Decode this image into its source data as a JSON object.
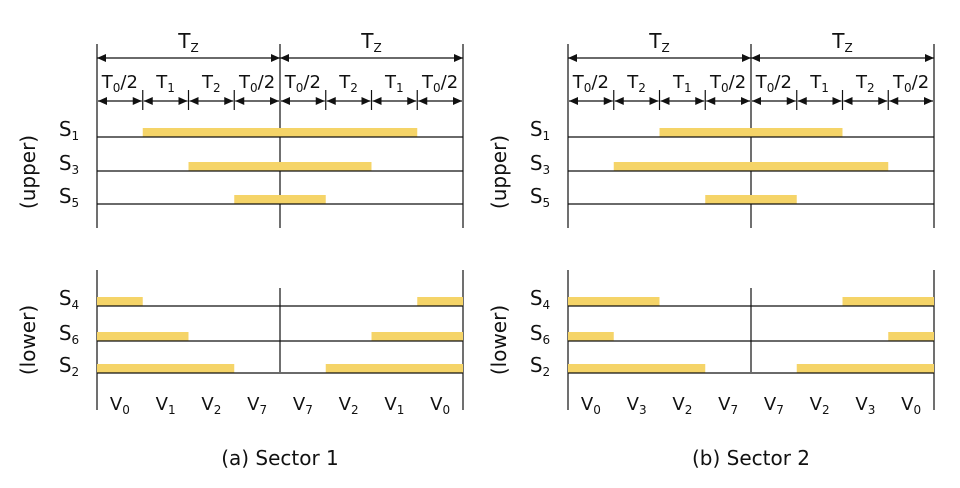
{
  "bar_color": "#F5D468",
  "line_color": "#111111",
  "group_labels": {
    "upper": "(upper)",
    "lower": "(lower)"
  },
  "panels": [
    {
      "id": "a",
      "caption": "(a) Sector 1",
      "tz_label": {
        "main": "T",
        "sub": "Z"
      },
      "segments": [
        {
          "main": "T",
          "sub": "0",
          "suffix": "/2"
        },
        {
          "main": "T",
          "sub": "1",
          "suffix": ""
        },
        {
          "main": "T",
          "sub": "2",
          "suffix": ""
        },
        {
          "main": "T",
          "sub": "0",
          "suffix": "/2"
        },
        {
          "main": "T",
          "sub": "0",
          "suffix": "/2"
        },
        {
          "main": "T",
          "sub": "2",
          "suffix": ""
        },
        {
          "main": "T",
          "sub": "1",
          "suffix": ""
        },
        {
          "main": "T",
          "sub": "0",
          "suffix": "/2"
        }
      ],
      "upper_switches": [
        {
          "main": "S",
          "sub": "1",
          "on": [
            1,
            7
          ]
        },
        {
          "main": "S",
          "sub": "3",
          "on": [
            2,
            6
          ]
        },
        {
          "main": "S",
          "sub": "5",
          "on": [
            3,
            5
          ]
        }
      ],
      "lower_switches": [
        {
          "main": "S",
          "sub": "4",
          "on": [
            [
              0,
              1
            ],
            [
              7,
              8
            ]
          ]
        },
        {
          "main": "S",
          "sub": "6",
          "on": [
            [
              0,
              2
            ],
            [
              6,
              8
            ]
          ]
        },
        {
          "main": "S",
          "sub": "2",
          "on": [
            [
              0,
              3
            ],
            [
              5,
              8
            ]
          ]
        }
      ],
      "vectors": [
        {
          "main": "V",
          "sub": "0"
        },
        {
          "main": "V",
          "sub": "1"
        },
        {
          "main": "V",
          "sub": "2"
        },
        {
          "main": "V",
          "sub": "7"
        },
        {
          "main": "V",
          "sub": "7"
        },
        {
          "main": "V",
          "sub": "2"
        },
        {
          "main": "V",
          "sub": "1"
        },
        {
          "main": "V",
          "sub": "0"
        }
      ]
    },
    {
      "id": "b",
      "caption": "(b) Sector 2",
      "tz_label": {
        "main": "T",
        "sub": "Z"
      },
      "segments": [
        {
          "main": "T",
          "sub": "0",
          "suffix": "/2"
        },
        {
          "main": "T",
          "sub": "2",
          "suffix": ""
        },
        {
          "main": "T",
          "sub": "1",
          "suffix": ""
        },
        {
          "main": "T",
          "sub": "0",
          "suffix": "/2"
        },
        {
          "main": "T",
          "sub": "0",
          "suffix": "/2"
        },
        {
          "main": "T",
          "sub": "1",
          "suffix": ""
        },
        {
          "main": "T",
          "sub": "2",
          "suffix": ""
        },
        {
          "main": "T",
          "sub": "0",
          "suffix": "/2"
        }
      ],
      "upper_switches": [
        {
          "main": "S",
          "sub": "1",
          "on": [
            2,
            6
          ]
        },
        {
          "main": "S",
          "sub": "3",
          "on": [
            1,
            7
          ]
        },
        {
          "main": "S",
          "sub": "5",
          "on": [
            3,
            5
          ]
        }
      ],
      "lower_switches": [
        {
          "main": "S",
          "sub": "4",
          "on": [
            [
              0,
              2
            ],
            [
              6,
              8
            ]
          ]
        },
        {
          "main": "S",
          "sub": "6",
          "on": [
            [
              0,
              1
            ],
            [
              7,
              8
            ]
          ]
        },
        {
          "main": "S",
          "sub": "2",
          "on": [
            [
              0,
              3
            ],
            [
              5,
              8
            ]
          ]
        }
      ],
      "vectors": [
        {
          "main": "V",
          "sub": "0"
        },
        {
          "main": "V",
          "sub": "3"
        },
        {
          "main": "V",
          "sub": "2"
        },
        {
          "main": "V",
          "sub": "7"
        },
        {
          "main": "V",
          "sub": "7"
        },
        {
          "main": "V",
          "sub": "2"
        },
        {
          "main": "V",
          "sub": "3"
        },
        {
          "main": "V",
          "sub": "0"
        }
      ]
    }
  ]
}
